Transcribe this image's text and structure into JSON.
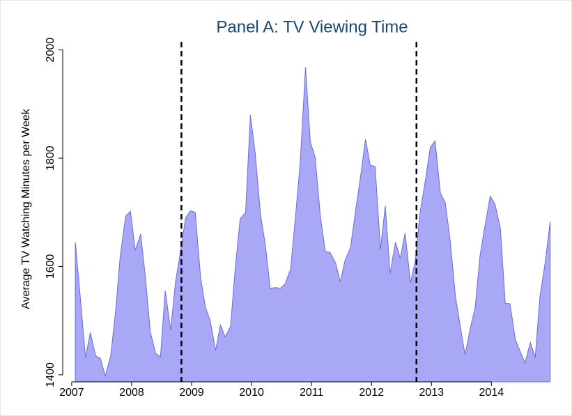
{
  "chart_data": {
    "type": "area",
    "title": "Panel A: TV Viewing Time",
    "y_label": "Average TV Watching Minutes per Week",
    "x": [
      2007.06,
      2007.15,
      2007.23,
      2007.31,
      2007.4,
      2007.48,
      2007.56,
      2007.65,
      2007.73,
      2007.81,
      2007.9,
      2007.98,
      2008.06,
      2008.15,
      2008.23,
      2008.31,
      2008.4,
      2008.48,
      2008.56,
      2008.65,
      2008.73,
      2008.81,
      2008.9,
      2008.98,
      2009.06,
      2009.15,
      2009.23,
      2009.31,
      2009.4,
      2009.48,
      2009.56,
      2009.65,
      2009.73,
      2009.81,
      2009.9,
      2009.98,
      2010.06,
      2010.15,
      2010.23,
      2010.31,
      2010.4,
      2010.48,
      2010.56,
      2010.65,
      2010.73,
      2010.81,
      2010.9,
      2010.98,
      2011.06,
      2011.15,
      2011.23,
      2011.31,
      2011.4,
      2011.48,
      2011.56,
      2011.65,
      2011.73,
      2011.81,
      2011.9,
      2011.98,
      2012.06,
      2012.15,
      2012.23,
      2012.31,
      2012.4,
      2012.48,
      2012.56,
      2012.65,
      2012.73,
      2012.81,
      2012.9,
      2012.98,
      2013.06,
      2013.15,
      2013.23,
      2013.31,
      2013.4,
      2013.48,
      2013.56,
      2013.65,
      2013.73,
      2013.81,
      2013.9,
      2013.98,
      2014.06,
      2014.15,
      2014.23,
      2014.31,
      2014.4,
      2014.48,
      2014.56,
      2014.65,
      2014.73,
      2014.81,
      2014.9,
      2014.98
    ],
    "values": [
      1645,
      1535,
      1432,
      1478,
      1435,
      1430,
      1398,
      1435,
      1515,
      1620,
      1693,
      1702,
      1630,
      1660,
      1580,
      1480,
      1440,
      1433,
      1555,
      1483,
      1570,
      1625,
      1690,
      1703,
      1700,
      1580,
      1525,
      1500,
      1445,
      1492,
      1470,
      1490,
      1600,
      1688,
      1700,
      1880,
      1810,
      1695,
      1640,
      1560,
      1561,
      1560,
      1568,
      1595,
      1690,
      1790,
      1968,
      1830,
      1802,
      1690,
      1628,
      1626,
      1607,
      1572,
      1612,
      1635,
      1700,
      1760,
      1835,
      1787,
      1785,
      1632,
      1712,
      1587,
      1645,
      1615,
      1662,
      1570,
      1610,
      1700,
      1760,
      1820,
      1832,
      1735,
      1718,
      1650,
      1545,
      1490,
      1437,
      1487,
      1525,
      1620,
      1680,
      1730,
      1715,
      1670,
      1532,
      1531,
      1465,
      1443,
      1422,
      1460,
      1432,
      1545,
      1610,
      1683
    ],
    "fill_color": "#a8a8f6",
    "line_color": "#6b6bdc",
    "reference_lines": [
      2008.83,
      2012.75
    ],
    "xlim": [
      2006.85,
      2015.1
    ],
    "xticks": [
      2007,
      2008,
      2009,
      2010,
      2011,
      2012,
      2013,
      2014
    ],
    "ylim": [
      1387,
      2015
    ],
    "yticks": [
      1400,
      1600,
      1800,
      2000
    ]
  }
}
